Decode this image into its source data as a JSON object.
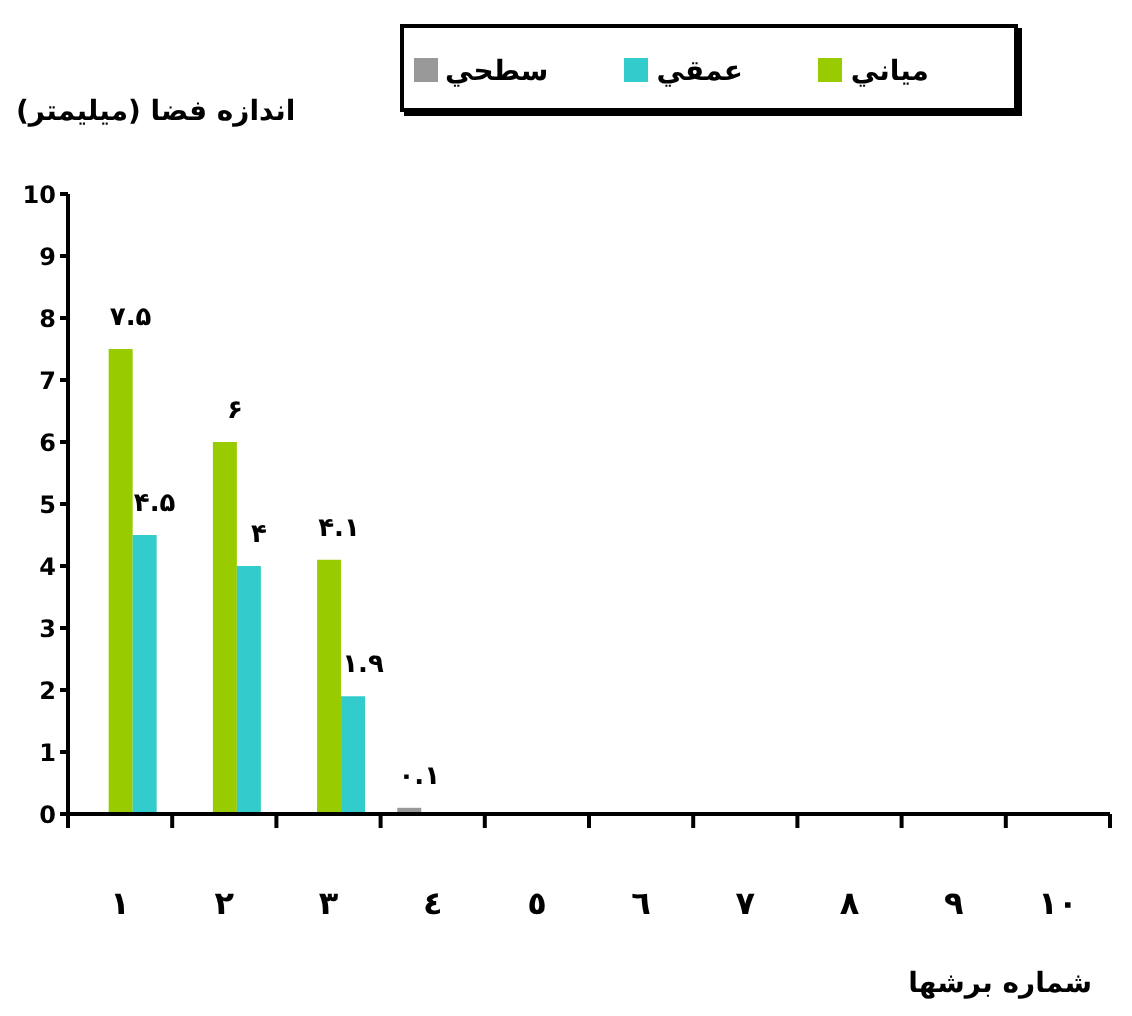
{
  "chart_data": {
    "type": "bar",
    "xlabel": "شماره برشها",
    "ylabel": "اندازه فضا (ميليمتر)",
    "categories": [
      "۱",
      "۲",
      "۳",
      "٤",
      "٥",
      "٦",
      "۷",
      "۸",
      "۹",
      "۱۰"
    ],
    "series": [
      {
        "name": "سطحي",
        "color": "#999999",
        "values": [
          null,
          null,
          null,
          0.1,
          null,
          null,
          null,
          null,
          null,
          null
        ],
        "value_labels": [
          null,
          null,
          null,
          "۰.۱",
          null,
          null,
          null,
          null,
          null,
          null
        ]
      },
      {
        "name": "مياني",
        "color": "#99cc00",
        "values": [
          7.5,
          6,
          4.1,
          null,
          null,
          null,
          null,
          null,
          null,
          null
        ],
        "value_labels": [
          "۷.۵",
          "۶",
          "۴.۱",
          null,
          null,
          null,
          null,
          null,
          null,
          null
        ]
      },
      {
        "name": "عمقي",
        "color": "#33cccc",
        "values": [
          4.5,
          4,
          1.9,
          null,
          null,
          null,
          null,
          null,
          null,
          null
        ],
        "value_labels": [
          "۴.۵",
          "۴",
          "۱.۹",
          null,
          null,
          null,
          null,
          null,
          null,
          null
        ]
      }
    ],
    "ylim": [
      0,
      10
    ],
    "yticks": [
      0,
      1,
      2,
      3,
      4,
      5,
      6,
      7,
      8,
      9,
      10
    ],
    "grid": false,
    "legend": "top"
  }
}
